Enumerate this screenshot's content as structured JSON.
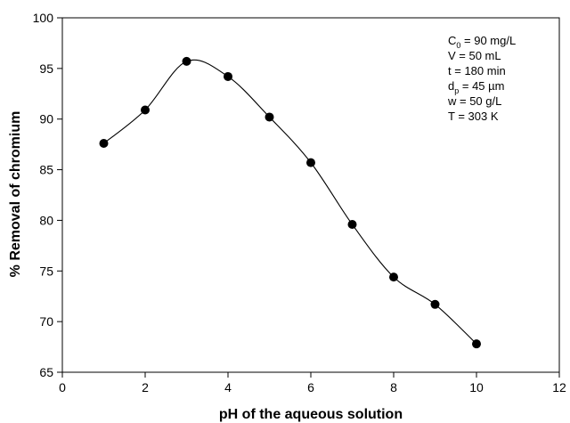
{
  "chart_data": {
    "type": "line",
    "title": "",
    "xlabel": "pH of the aqueous solution",
    "ylabel": "% Removal of chromium",
    "xlim": [
      0,
      12
    ],
    "ylim": [
      65,
      100
    ],
    "x_ticks": [
      0,
      2,
      4,
      6,
      8,
      10,
      12
    ],
    "y_ticks": [
      65,
      70,
      75,
      80,
      85,
      90,
      95,
      100
    ],
    "grid": false,
    "marker": "filled-circle",
    "line_style": "smooth-curve",
    "series": [
      {
        "x": [
          1,
          2,
          3,
          4,
          5,
          6,
          7,
          8,
          9,
          10
        ],
        "y": [
          87.6,
          90.9,
          95.7,
          94.2,
          90.2,
          85.7,
          79.6,
          74.4,
          71.7,
          67.8
        ]
      }
    ],
    "annotations": [
      {
        "symbol": "C",
        "sub": "0",
        "text": " = 90 mg/L"
      },
      {
        "symbol": "V",
        "sub": "",
        "text": "  = 50 mL"
      },
      {
        "symbol": "t",
        "sub": "",
        "text": "   = 180 min"
      },
      {
        "symbol": "d",
        "sub": "p",
        "text": "  = 45 µm"
      },
      {
        "symbol": "w",
        "sub": "",
        "text": "  = 50 g/L"
      },
      {
        "symbol": "T",
        "sub": "",
        "text": "  = 303 K"
      }
    ]
  }
}
